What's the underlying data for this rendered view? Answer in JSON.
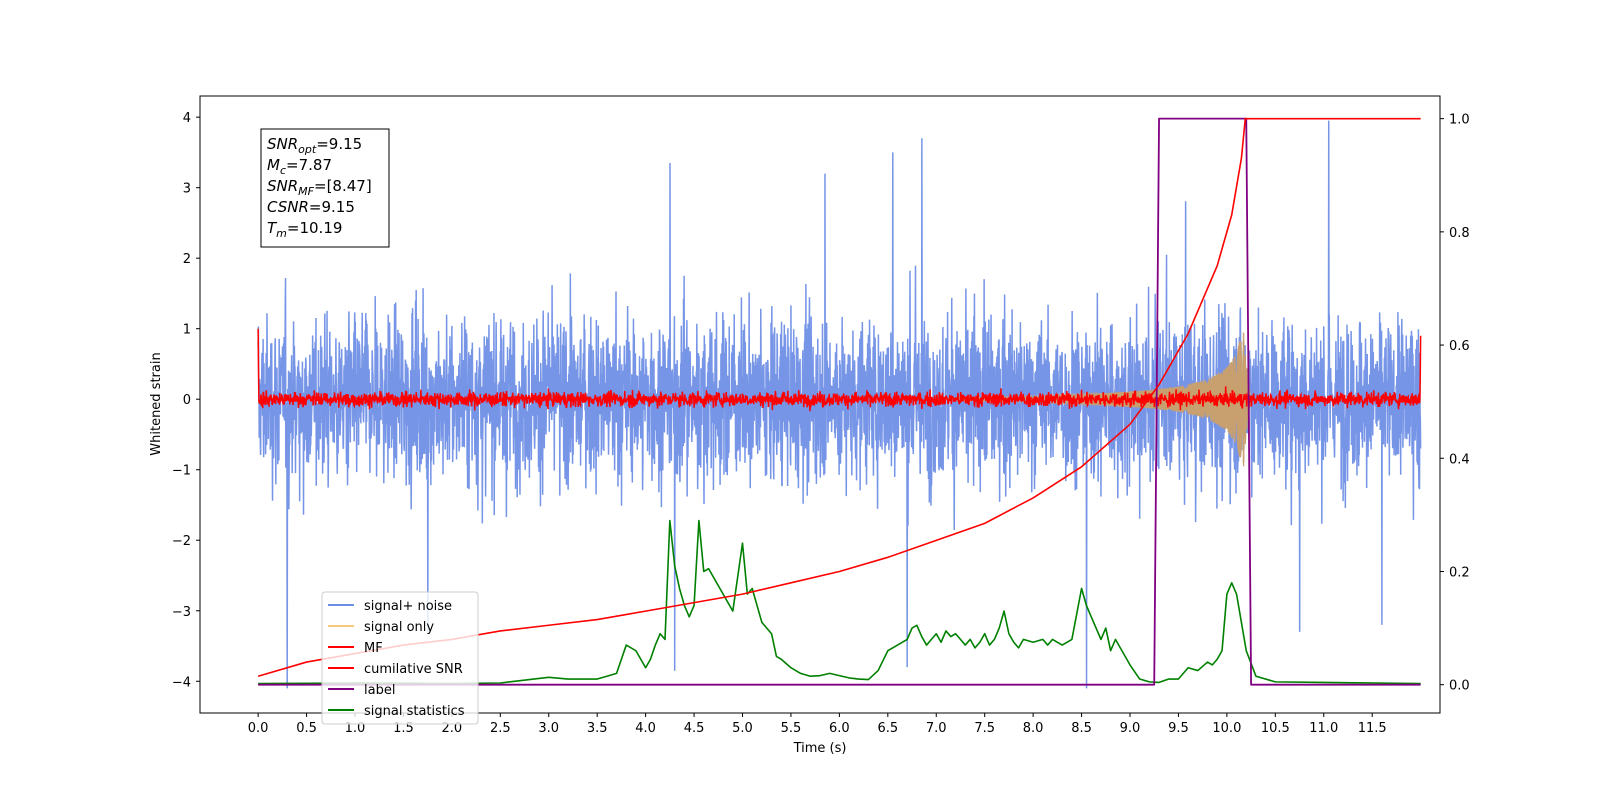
{
  "chart_data": {
    "type": "line",
    "xlabel": "Time (s)",
    "ylabel": "Whitened strain",
    "xlim": [
      -0.6,
      12.2
    ],
    "ylim": [
      -4.45,
      4.3
    ],
    "y2lim": [
      -0.05,
      1.04
    ],
    "x_ticks": [
      "0.0",
      "0.5",
      "1.0",
      "1.5",
      "2.0",
      "2.5",
      "3.0",
      "3.5",
      "4.0",
      "4.5",
      "5.0",
      "5.5",
      "6.0",
      "6.5",
      "7.0",
      "7.5",
      "8.0",
      "8.5",
      "9.0",
      "9.5",
      "10.0",
      "10.5",
      "11.0",
      "11.5"
    ],
    "y_ticks": [
      "−4",
      "−3",
      "−2",
      "−1",
      "0",
      "1",
      "2",
      "3",
      "4"
    ],
    "y2_ticks": [
      "0.0",
      "0.2",
      "0.4",
      "0.6",
      "0.8",
      "1.0"
    ],
    "info_box": {
      "lines": [
        {
          "sym": "SNR",
          "sub": "opt",
          "value": "=9.15"
        },
        {
          "sym": "M",
          "sub": "c",
          "value": "=7.87"
        },
        {
          "sym": "SNR",
          "sub": "MF",
          "value": "=[8.47]"
        },
        {
          "sym": "CSNR",
          "sub": "",
          "value": "=9.15"
        },
        {
          "sym": "T",
          "sub": "m",
          "value": "=10.19"
        }
      ]
    },
    "legend": {
      "position": "lower-left",
      "entries": [
        {
          "label": "signal+ noise",
          "color": "#6f8fe6"
        },
        {
          "label": "signal only",
          "color": "#f5c87a"
        },
        {
          "label": "MF",
          "color": "#ff0000"
        },
        {
          "label": "cumilative SNR",
          "color": "#ff0000"
        },
        {
          "label": "label",
          "color": "#800080"
        },
        {
          "label": "signal statistics",
          "color": "#008000"
        }
      ]
    },
    "series": [
      {
        "name": "signal+ noise",
        "axis": "left",
        "color": "#6f8fe6",
        "kind": "noise",
        "x_range": [
          0.0,
          12.0
        ],
        "approx_amplitude": 2.2,
        "spikes": [
          [
            0.3,
            -4.1
          ],
          [
            1.75,
            -3.3
          ],
          [
            4.25,
            3.35
          ],
          [
            4.3,
            -3.85
          ],
          [
            6.55,
            3.5
          ],
          [
            6.7,
            -3.8
          ],
          [
            6.85,
            3.7
          ],
          [
            8.55,
            -4.1
          ],
          [
            10.75,
            -3.3
          ],
          [
            11.05,
            3.95
          ],
          [
            11.6,
            -3.2
          ],
          [
            5.85,
            3.2
          ]
        ]
      },
      {
        "name": "signal only",
        "axis": "left",
        "color": "#c8a070",
        "kind": "chirp",
        "x_range": [
          7.0,
          10.25
        ],
        "envelope": [
          [
            7.0,
            0.02
          ],
          [
            8.0,
            0.05
          ],
          [
            8.8,
            0.09
          ],
          [
            9.2,
            0.13
          ],
          [
            9.5,
            0.18
          ],
          [
            9.8,
            0.28
          ],
          [
            10.0,
            0.45
          ],
          [
            10.1,
            0.65
          ],
          [
            10.17,
            1.0
          ],
          [
            10.2,
            0.5
          ],
          [
            10.25,
            0.0
          ]
        ]
      },
      {
        "name": "MF",
        "axis": "left",
        "color": "#ff0000",
        "kind": "noise",
        "x_range": [
          0.0,
          12.0
        ],
        "approx_amplitude": 0.18,
        "edge_values": [
          [
            0.0,
            1.0
          ],
          [
            12.0,
            0.9
          ]
        ]
      },
      {
        "name": "cumilative SNR",
        "axis": "right",
        "color": "#ff0000",
        "points": [
          [
            0.0,
            0.015
          ],
          [
            0.5,
            0.04
          ],
          [
            1.0,
            0.055
          ],
          [
            1.5,
            0.07
          ],
          [
            2.0,
            0.08
          ],
          [
            2.5,
            0.095
          ],
          [
            3.0,
            0.105
          ],
          [
            3.5,
            0.115
          ],
          [
            4.0,
            0.13
          ],
          [
            4.5,
            0.145
          ],
          [
            5.0,
            0.16
          ],
          [
            5.5,
            0.18
          ],
          [
            6.0,
            0.2
          ],
          [
            6.5,
            0.225
          ],
          [
            7.0,
            0.255
          ],
          [
            7.5,
            0.285
          ],
          [
            8.0,
            0.33
          ],
          [
            8.5,
            0.385
          ],
          [
            9.0,
            0.46
          ],
          [
            9.3,
            0.53
          ],
          [
            9.6,
            0.62
          ],
          [
            9.9,
            0.74
          ],
          [
            10.05,
            0.83
          ],
          [
            10.15,
            0.93
          ],
          [
            10.19,
            1.0
          ],
          [
            12.0,
            1.0
          ]
        ]
      },
      {
        "name": "label",
        "axis": "right",
        "color": "#800080",
        "points": [
          [
            0.0,
            0.0
          ],
          [
            9.25,
            0.0
          ],
          [
            9.3,
            1.0
          ],
          [
            10.2,
            1.0
          ],
          [
            10.25,
            0.0
          ],
          [
            12.0,
            0.0
          ]
        ]
      },
      {
        "name": "signal statistics",
        "axis": "right",
        "color": "#008000",
        "points": [
          [
            0.0,
            0.002
          ],
          [
            1.0,
            0.003
          ],
          [
            2.0,
            0.002
          ],
          [
            2.5,
            0.003
          ],
          [
            3.0,
            0.013
          ],
          [
            3.2,
            0.01
          ],
          [
            3.5,
            0.01
          ],
          [
            3.6,
            0.015
          ],
          [
            3.7,
            0.02
          ],
          [
            3.8,
            0.07
          ],
          [
            3.9,
            0.06
          ],
          [
            4.0,
            0.03
          ],
          [
            4.05,
            0.045
          ],
          [
            4.1,
            0.07
          ],
          [
            4.15,
            0.09
          ],
          [
            4.2,
            0.08
          ],
          [
            4.25,
            0.29
          ],
          [
            4.3,
            0.21
          ],
          [
            4.35,
            0.17
          ],
          [
            4.4,
            0.14
          ],
          [
            4.45,
            0.12
          ],
          [
            4.5,
            0.14
          ],
          [
            4.55,
            0.29
          ],
          [
            4.6,
            0.2
          ],
          [
            4.65,
            0.205
          ],
          [
            4.7,
            0.19
          ],
          [
            4.8,
            0.16
          ],
          [
            4.9,
            0.13
          ],
          [
            5.0,
            0.25
          ],
          [
            5.05,
            0.16
          ],
          [
            5.1,
            0.17
          ],
          [
            5.2,
            0.11
          ],
          [
            5.3,
            0.09
          ],
          [
            5.35,
            0.05
          ],
          [
            5.4,
            0.045
          ],
          [
            5.5,
            0.03
          ],
          [
            5.6,
            0.02
          ],
          [
            5.7,
            0.015
          ],
          [
            5.8,
            0.016
          ],
          [
            5.9,
            0.02
          ],
          [
            6.0,
            0.016
          ],
          [
            6.1,
            0.012
          ],
          [
            6.2,
            0.01
          ],
          [
            6.3,
            0.009
          ],
          [
            6.4,
            0.025
          ],
          [
            6.5,
            0.06
          ],
          [
            6.6,
            0.07
          ],
          [
            6.7,
            0.08
          ],
          [
            6.75,
            0.1
          ],
          [
            6.8,
            0.105
          ],
          [
            6.85,
            0.085
          ],
          [
            6.9,
            0.07
          ],
          [
            6.95,
            0.08
          ],
          [
            7.0,
            0.09
          ],
          [
            7.05,
            0.075
          ],
          [
            7.1,
            0.095
          ],
          [
            7.15,
            0.085
          ],
          [
            7.2,
            0.09
          ],
          [
            7.25,
            0.08
          ],
          [
            7.3,
            0.07
          ],
          [
            7.35,
            0.08
          ],
          [
            7.4,
            0.065
          ],
          [
            7.45,
            0.075
          ],
          [
            7.5,
            0.09
          ],
          [
            7.55,
            0.07
          ],
          [
            7.6,
            0.08
          ],
          [
            7.65,
            0.1
          ],
          [
            7.7,
            0.13
          ],
          [
            7.75,
            0.09
          ],
          [
            7.8,
            0.075
          ],
          [
            7.85,
            0.065
          ],
          [
            7.9,
            0.08
          ],
          [
            8.0,
            0.075
          ],
          [
            8.1,
            0.08
          ],
          [
            8.15,
            0.07
          ],
          [
            8.2,
            0.08
          ],
          [
            8.3,
            0.07
          ],
          [
            8.4,
            0.08
          ],
          [
            8.5,
            0.17
          ],
          [
            8.55,
            0.14
          ],
          [
            8.6,
            0.12
          ],
          [
            8.65,
            0.1
          ],
          [
            8.7,
            0.08
          ],
          [
            8.75,
            0.1
          ],
          [
            8.8,
            0.06
          ],
          [
            8.85,
            0.08
          ],
          [
            8.9,
            0.065
          ],
          [
            9.0,
            0.035
          ],
          [
            9.1,
            0.01
          ],
          [
            9.2,
            0.005
          ],
          [
            9.3,
            0.004
          ],
          [
            9.4,
            0.01
          ],
          [
            9.5,
            0.01
          ],
          [
            9.6,
            0.03
          ],
          [
            9.7,
            0.025
          ],
          [
            9.8,
            0.04
          ],
          [
            9.85,
            0.035
          ],
          [
            9.9,
            0.045
          ],
          [
            9.95,
            0.06
          ],
          [
            10.0,
            0.16
          ],
          [
            10.05,
            0.18
          ],
          [
            10.1,
            0.16
          ],
          [
            10.2,
            0.06
          ],
          [
            10.3,
            0.015
          ],
          [
            10.5,
            0.005
          ],
          [
            11.0,
            0.004
          ],
          [
            12.0,
            0.002
          ]
        ]
      }
    ]
  }
}
